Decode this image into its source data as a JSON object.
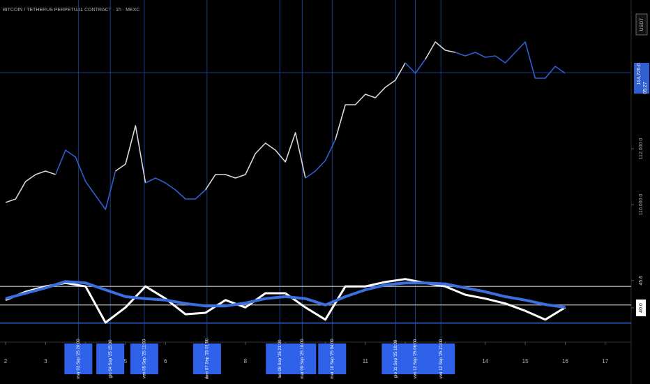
{
  "chart_data": [
    {
      "type": "line",
      "title": "BITCOIN / TETHERUS PERPETUAL CONTRACT · 1h · MEXC",
      "currency": "USDT",
      "last_price": {
        "value": 114725,
        "label": "114,725.0"
      },
      "countdown": "05:27",
      "x": [
        2,
        2.25,
        2.5,
        2.75,
        3,
        3.25,
        3.5,
        3.75,
        4,
        4.25,
        4.5,
        4.75,
        5,
        5.25,
        5.5,
        5.75,
        6,
        6.25,
        6.5,
        6.75,
        7,
        7.25,
        7.5,
        7.75,
        8,
        8.25,
        8.5,
        8.75,
        9,
        9.25,
        9.5,
        9.75,
        10,
        10.25,
        10.5,
        10.75,
        11,
        11.25,
        11.5,
        11.75,
        12,
        12.25,
        12.5,
        12.75,
        13,
        13.25,
        13.5,
        13.75,
        14,
        14.25,
        14.5,
        14.75,
        15,
        15.25,
        15.5,
        15.75,
        16
      ],
      "series": [
        {
          "color": "#d8d8d8",
          "values": [
            110075,
            110200,
            110825,
            111075,
            111200,
            111075,
            null,
            null,
            null,
            null,
            null,
            111200,
            111450,
            112825,
            110775,
            null,
            null,
            null,
            null,
            null,
            110525,
            111075,
            111075,
            110950,
            111075,
            111825,
            112200,
            111950,
            111525,
            112575,
            110950,
            null,
            null,
            112325,
            113575,
            113575,
            113950,
            113825,
            114200,
            114450,
            115075,
            null,
            115200,
            115825,
            115525,
            115450,
            null,
            null,
            null,
            null,
            null,
            null,
            null,
            null,
            null,
            null,
            null
          ]
        },
        {
          "color": "#2f5fd0",
          "values": [
            null,
            null,
            null,
            null,
            null,
            111075,
            111950,
            111700,
            110825,
            110325,
            109825,
            111200,
            null,
            null,
            110775,
            110950,
            110775,
            110525,
            110200,
            110200,
            110525,
            null,
            null,
            null,
            null,
            null,
            null,
            null,
            null,
            null,
            110950,
            111200,
            111575,
            112325,
            null,
            null,
            null,
            null,
            null,
            null,
            115075,
            114700,
            115200,
            null,
            null,
            115450,
            115325,
            115450,
            115275,
            115325,
            115075,
            115450,
            115825,
            114525,
            114525,
            114950,
            114700
          ]
        }
      ],
      "xlim": [
        1.86,
        17.65
      ],
      "xticks": [
        2,
        3,
        4,
        5,
        6,
        7,
        8,
        9,
        10,
        11,
        12,
        13,
        14,
        15,
        16,
        17
      ],
      "ylim": [
        107700,
        117325
      ],
      "yticks": [
        {
          "value": 110000,
          "label": "110,000.0"
        },
        {
          "value": 112000,
          "label": "112,000.0"
        }
      ],
      "events": [
        {
          "x": 3.82,
          "label": "mer 03 Sep '25 20:00"
        },
        {
          "x": 4.62,
          "label": "gio 04 Sep '25 15:00"
        },
        {
          "x": 5.47,
          "label": "ven 05 Sep '25 11:00"
        },
        {
          "x": 7.04,
          "label": "dom 07 Sep '25 01:00"
        },
        {
          "x": 8.86,
          "label": "lun 08 Sep '25 21:00"
        },
        {
          "x": 9.42,
          "label": "mar 09 Sep '25 10:00"
        },
        {
          "x": 10.17,
          "label": "mer 10 Sep '25 04:00"
        },
        {
          "x": 11.76,
          "label": "gio 11 Sep '25 18:00"
        },
        {
          "x": 12.25,
          "label": "ven 12 Sep '25 06:00"
        },
        {
          "x": 12.89,
          "label": "ven 12 Sep '25 21:00"
        }
      ]
    },
    {
      "type": "line",
      "x": [
        2,
        2.5,
        3,
        3.5,
        4,
        4.5,
        5,
        5.5,
        6,
        6.5,
        7,
        7.5,
        8,
        8.5,
        9,
        9.5,
        10,
        10.5,
        11,
        11.5,
        12,
        12.5,
        13,
        13.5,
        14,
        14.5,
        15,
        15.5,
        16
      ],
      "series": [
        {
          "color": "#ffffff",
          "values": [
            41.6,
            43.3,
            44.4,
            45.1,
            44.4,
            37.0,
            40.1,
            44.4,
            41.9,
            38.7,
            39.0,
            41.6,
            40.1,
            43.0,
            43.0,
            40.1,
            37.6,
            44.4,
            44.4,
            45.3,
            45.9,
            45.1,
            44.4,
            42.7,
            41.9,
            40.9,
            39.4,
            37.6,
            40.1
          ]
        },
        {
          "color": "#3b6fe0",
          "values": [
            41.9,
            43.0,
            44.1,
            45.4,
            45.1,
            43.7,
            42.3,
            41.9,
            41.6,
            40.9,
            40.4,
            40.4,
            41.0,
            41.9,
            42.3,
            41.9,
            40.6,
            42.3,
            43.7,
            44.7,
            45.1,
            45.1,
            44.9,
            44.1,
            43.3,
            42.3,
            41.6,
            40.7,
            40.1
          ]
        }
      ],
      "ylim": [
        33,
        48
      ],
      "yticks": [
        {
          "value": 45.6,
          "label": "45.6"
        },
        {
          "value": 40.0,
          "label": "40.0"
        }
      ],
      "levels": [
        44.4,
        40.6,
        36.9
      ]
    }
  ]
}
